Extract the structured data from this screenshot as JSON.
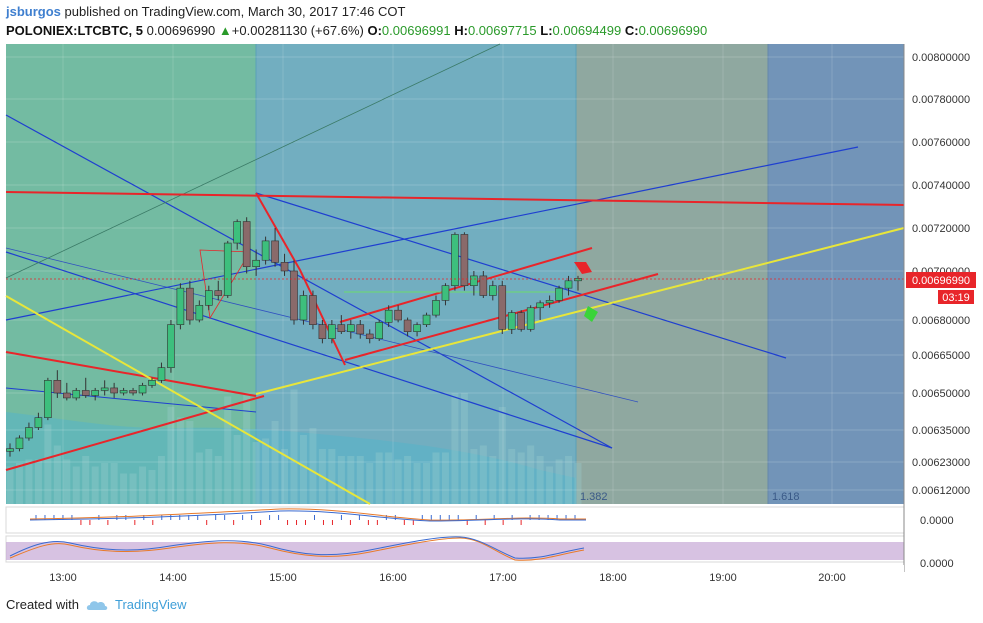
{
  "header": {
    "author": "jsburgos",
    "published_text": "published on TradingView.com, March 30, 2017 17:46 COT",
    "symbol": "POLONIEX:LTCBTC, 5",
    "price": "0.00696990",
    "change": "+0.00281130 (+67.6%)",
    "open_label": "O:",
    "open": "0.00696991",
    "high_label": "H:",
    "high": "0.00697715",
    "low_label": "L:",
    "low": "0.00694499",
    "close_label": "C:",
    "close": "0.00696990"
  },
  "footer": {
    "created_with": "Created with",
    "brand": "TradingView"
  },
  "chart_data": {
    "type": "candlestick",
    "title": "",
    "x_tick_labels": [
      "13:00",
      "14:00",
      "15:00",
      "16:00",
      "17:00",
      "18:00",
      "19:00",
      "20:00"
    ],
    "y_tick_labels": [
      "0.00800000",
      "0.00780000",
      "0.00760000",
      "0.00740000",
      "0.00720000",
      "0.00700000",
      "0.00680000",
      "0.00665000",
      "0.00650000",
      "0.00635000",
      "0.00623000",
      "0.00612000"
    ],
    "y_tick_values": [
      0.008,
      0.0078,
      0.0076,
      0.0074,
      0.0072,
      0.007,
      0.0068,
      0.00665,
      0.0065,
      0.00635,
      0.00623,
      0.00612
    ],
    "last_price_label": "0.00696990",
    "countdown_label": "03:19",
    "fib_labels": [
      "1.382",
      "1.618"
    ],
    "oscillator_1_label": "0.0000",
    "oscillator_2_label": "0.0000",
    "colors": {
      "up": "#3dbf7d",
      "down": "#8a6a6a",
      "trend_red": "#e8252a",
      "trend_yellow": "#e8e63a",
      "channel_blue": "#1f3fd0",
      "price_tag": "#e8252a"
    },
    "candles": [
      [
        6270,
        6300,
        6250,
        6280
      ],
      [
        6280,
        6330,
        6270,
        6320
      ],
      [
        6320,
        6380,
        6310,
        6360
      ],
      [
        6360,
        6420,
        6350,
        6400
      ],
      [
        6400,
        6560,
        6390,
        6550
      ],
      [
        6550,
        6590,
        6480,
        6500
      ],
      [
        6500,
        6540,
        6470,
        6480
      ],
      [
        6480,
        6520,
        6470,
        6510
      ],
      [
        6510,
        6560,
        6480,
        6490
      ],
      [
        6490,
        6520,
        6470,
        6510
      ],
      [
        6510,
        6550,
        6490,
        6520
      ],
      [
        6520,
        6540,
        6480,
        6500
      ],
      [
        6500,
        6520,
        6490,
        6510
      ],
      [
        6510,
        6520,
        6490,
        6500
      ],
      [
        6500,
        6540,
        6490,
        6530
      ],
      [
        6530,
        6560,
        6520,
        6550
      ],
      [
        6550,
        6620,
        6540,
        6600
      ],
      [
        6600,
        6800,
        6580,
        6780
      ],
      [
        6780,
        6950,
        6760,
        6930
      ],
      [
        6930,
        6960,
        6780,
        6800
      ],
      [
        6800,
        6880,
        6790,
        6860
      ],
      [
        6860,
        6940,
        6840,
        6920
      ],
      [
        6920,
        6960,
        6880,
        6900
      ],
      [
        6900,
        7140,
        6890,
        7130
      ],
      [
        7130,
        7240,
        7100,
        7230
      ],
      [
        7230,
        7250,
        6990,
        7020
      ],
      [
        7020,
        7100,
        6980,
        7050
      ],
      [
        7050,
        7160,
        7030,
        7140
      ],
      [
        7140,
        7200,
        7020,
        7040
      ],
      [
        7040,
        7080,
        6980,
        7000
      ],
      [
        7000,
        7050,
        6780,
        6800
      ],
      [
        6800,
        6920,
        6780,
        6900
      ],
      [
        6900,
        6920,
        6760,
        6780
      ],
      [
        6780,
        6800,
        6700,
        6720
      ],
      [
        6720,
        6800,
        6700,
        6780
      ],
      [
        6780,
        6820,
        6740,
        6750
      ],
      [
        6750,
        6800,
        6720,
        6780
      ],
      [
        6780,
        6800,
        6720,
        6740
      ],
      [
        6740,
        6760,
        6700,
        6720
      ],
      [
        6720,
        6800,
        6710,
        6790
      ],
      [
        6790,
        6860,
        6770,
        6840
      ],
      [
        6840,
        6860,
        6790,
        6800
      ],
      [
        6800,
        6810,
        6730,
        6750
      ],
      [
        6750,
        6790,
        6730,
        6780
      ],
      [
        6780,
        6830,
        6770,
        6820
      ],
      [
        6820,
        6900,
        6810,
        6880
      ],
      [
        6880,
        6950,
        6860,
        6940
      ],
      [
        6940,
        7180,
        6920,
        7170
      ],
      [
        7170,
        7180,
        6920,
        6940
      ],
      [
        6940,
        7000,
        6900,
        6980
      ],
      [
        6980,
        7000,
        6890,
        6900
      ],
      [
        6900,
        6960,
        6880,
        6940
      ],
      [
        6940,
        6960,
        6740,
        6760
      ],
      [
        6760,
        6840,
        6740,
        6830
      ],
      [
        6830,
        6840,
        6750,
        6760
      ],
      [
        6760,
        6860,
        6750,
        6850
      ],
      [
        6850,
        6880,
        6800,
        6870
      ],
      [
        6870,
        6900,
        6850,
        6880
      ],
      [
        6880,
        6940,
        6870,
        6930
      ],
      [
        6930,
        6980,
        6900,
        6960
      ],
      [
        6960,
        6980,
        6920,
        6970
      ]
    ]
  }
}
